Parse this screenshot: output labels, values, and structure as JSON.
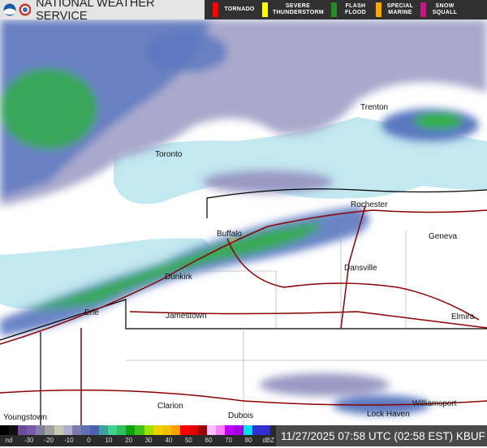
{
  "header": {
    "title": "NATIONAL WEATHER SERVICE",
    "warnings": [
      {
        "label": "TORNADO",
        "color": "#ff0000"
      },
      {
        "label": "SEVERE THUNDERSTORM",
        "color": "#ffff00"
      },
      {
        "label": "FLASH FLOOD",
        "color": "#228b22"
      },
      {
        "label": "SPECIAL MARINE",
        "color": "#ffa500"
      },
      {
        "label": "SNOW SQUALL",
        "color": "#c71585"
      }
    ]
  },
  "map": {
    "cities": [
      "Trenton",
      "Toronto",
      "Rochester",
      "Geneva",
      "Buffalo",
      "Dansville",
      "Dunkirk",
      "Jamestown",
      "Erie",
      "Elmira",
      "Clarion",
      "Dubois",
      "Williamsport",
      "Lock Haven",
      "Youngstown"
    ],
    "colors": {
      "lake": "#c2e8f0",
      "radar_light": "#9a9ac4",
      "radar_mid": "#5a78c0",
      "radar_green": "#30b040",
      "road": "#8b0000"
    }
  },
  "legend": {
    "ticks": [
      "nd",
      "-30",
      "-20",
      "-10",
      "0",
      "10",
      "20",
      "30",
      "40",
      "50",
      "60",
      "70",
      "80",
      "dBZ"
    ],
    "colors": [
      "#000",
      "#111",
      "#6a4a9a",
      "#7a5aaa",
      "#8080a0",
      "#a0a0a0",
      "#c8c8b0",
      "#b0b0c8",
      "#7a7ab0",
      "#6070b0",
      "#4a60b0",
      "#40a0a0",
      "#40d090",
      "#30c060",
      "#10a010",
      "#40c020",
      "#a0e000",
      "#f0d000",
      "#f0c000",
      "#ffa000",
      "#ff0000",
      "#e00000",
      "#a00000",
      "#ffc0ff",
      "#ff80ff",
      "#c000ff",
      "#a000e0",
      "#00e0f0",
      "#3030d0",
      "#3030d0"
    ]
  },
  "timestamp": "11/27/2025 07:58 UTC (02:58 EST) KBUF"
}
